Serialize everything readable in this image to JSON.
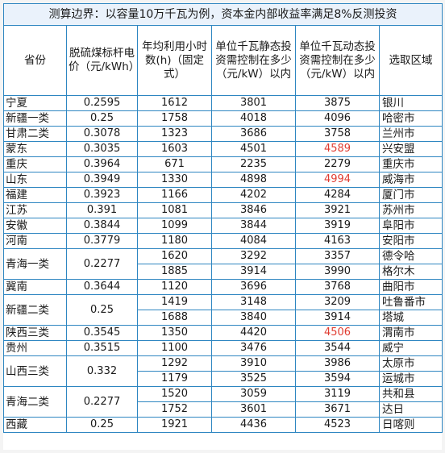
{
  "title": "测算边界：以容量10万千瓦为例，资本金内部收益率满足8%反测投资",
  "headers": {
    "province": "省份",
    "coal_price": "脱硫煤标杆电价（元/kWh）",
    "hours": "年均利用小时数(h)（固定式）",
    "static": "单位千瓦静态投资需控制在多少（元/kW）以内",
    "dynamic": "单位千瓦动态投资需控制在多少（元/kW）以内",
    "region": "选取区域"
  },
  "groups": [
    {
      "province": "宁夏",
      "price": "0.2595",
      "rows": [
        {
          "hours": "1612",
          "static": "3801",
          "dynamic": "3875",
          "region": "银川",
          "hl": false
        }
      ]
    },
    {
      "province": "新疆一类",
      "price": "0.25",
      "rows": [
        {
          "hours": "1758",
          "static": "4018",
          "dynamic": "4096",
          "region": "哈密市",
          "hl": false
        }
      ]
    },
    {
      "province": "甘肃二类",
      "price": "0.3078",
      "rows": [
        {
          "hours": "1323",
          "static": "3686",
          "dynamic": "3758",
          "region": "兰州市",
          "hl": false
        }
      ]
    },
    {
      "province": "蒙东",
      "price": "0.3035",
      "rows": [
        {
          "hours": "1603",
          "static": "4501",
          "dynamic": "4589",
          "region": "兴安盟",
          "hl": true
        }
      ]
    },
    {
      "province": "重庆",
      "price": "0.3964",
      "rows": [
        {
          "hours": "671",
          "static": "2235",
          "dynamic": "2279",
          "region": "重庆市",
          "hl": false
        }
      ]
    },
    {
      "province": "山东",
      "price": "0.3949",
      "rows": [
        {
          "hours": "1330",
          "static": "4898",
          "dynamic": "4994",
          "region": "威海市",
          "hl": true
        }
      ]
    },
    {
      "province": "福建",
      "price": "0.3923",
      "rows": [
        {
          "hours": "1166",
          "static": "4202",
          "dynamic": "4284",
          "region": "厦门市",
          "hl": false
        }
      ]
    },
    {
      "province": "江苏",
      "price": "0.391",
      "rows": [
        {
          "hours": "1081",
          "static": "3846",
          "dynamic": "3921",
          "region": "苏州市",
          "hl": false
        }
      ]
    },
    {
      "province": "安徽",
      "price": "0.3844",
      "rows": [
        {
          "hours": "1099",
          "static": "3844",
          "dynamic": "3919",
          "region": "阜阳市",
          "hl": false
        }
      ]
    },
    {
      "province": "河南",
      "price": "0.3779",
      "rows": [
        {
          "hours": "1180",
          "static": "4084",
          "dynamic": "4163",
          "region": "安阳市",
          "hl": false
        }
      ]
    },
    {
      "province": "青海一类",
      "price": "0.2277",
      "rows": [
        {
          "hours": "1620",
          "static": "3292",
          "dynamic": "3357",
          "region": "德令哈",
          "hl": false
        },
        {
          "hours": "1885",
          "static": "3914",
          "dynamic": "3990",
          "region": "格尔木",
          "hl": false
        }
      ]
    },
    {
      "province": "冀南",
      "price": "0.3644",
      "rows": [
        {
          "hours": "1120",
          "static": "3696",
          "dynamic": "3768",
          "region": "曲阳市",
          "hl": false
        }
      ]
    },
    {
      "province": "新疆二类",
      "price": "0.25",
      "rows": [
        {
          "hours": "1419",
          "static": "3148",
          "dynamic": "3209",
          "region": "吐鲁番市",
          "hl": false
        },
        {
          "hours": "1688",
          "static": "3840",
          "dynamic": "3914",
          "region": "塔城",
          "hl": false
        }
      ]
    },
    {
      "province": "陕西三类",
      "price": "0.3545",
      "rows": [
        {
          "hours": "1350",
          "static": "4420",
          "dynamic": "4506",
          "region": "渭南市",
          "hl": true
        }
      ]
    },
    {
      "province": "贵州",
      "price": "0.3515",
      "rows": [
        {
          "hours": "1100",
          "static": "3476",
          "dynamic": "3544",
          "region": "威宁",
          "hl": false
        }
      ]
    },
    {
      "province": "山西三类",
      "price": "0.332",
      "rows": [
        {
          "hours": "1292",
          "static": "3910",
          "dynamic": "3986",
          "region": "太原市",
          "hl": false
        },
        {
          "hours": "1179",
          "static": "3525",
          "dynamic": "3594",
          "region": "运城市",
          "hl": false
        }
      ]
    },
    {
      "province": "青海二类",
      "price": "0.2277",
      "rows": [
        {
          "hours": "1520",
          "static": "3059",
          "dynamic": "3119",
          "region": "共和县",
          "hl": false
        },
        {
          "hours": "1752",
          "static": "3601",
          "dynamic": "3671",
          "region": "达日",
          "hl": false
        }
      ]
    },
    {
      "province": "西藏",
      "price": "0.25",
      "rows": [
        {
          "hours": "1921",
          "static": "4436",
          "dynamic": "4523",
          "region": "日喀则",
          "hl": false
        }
      ]
    }
  ]
}
